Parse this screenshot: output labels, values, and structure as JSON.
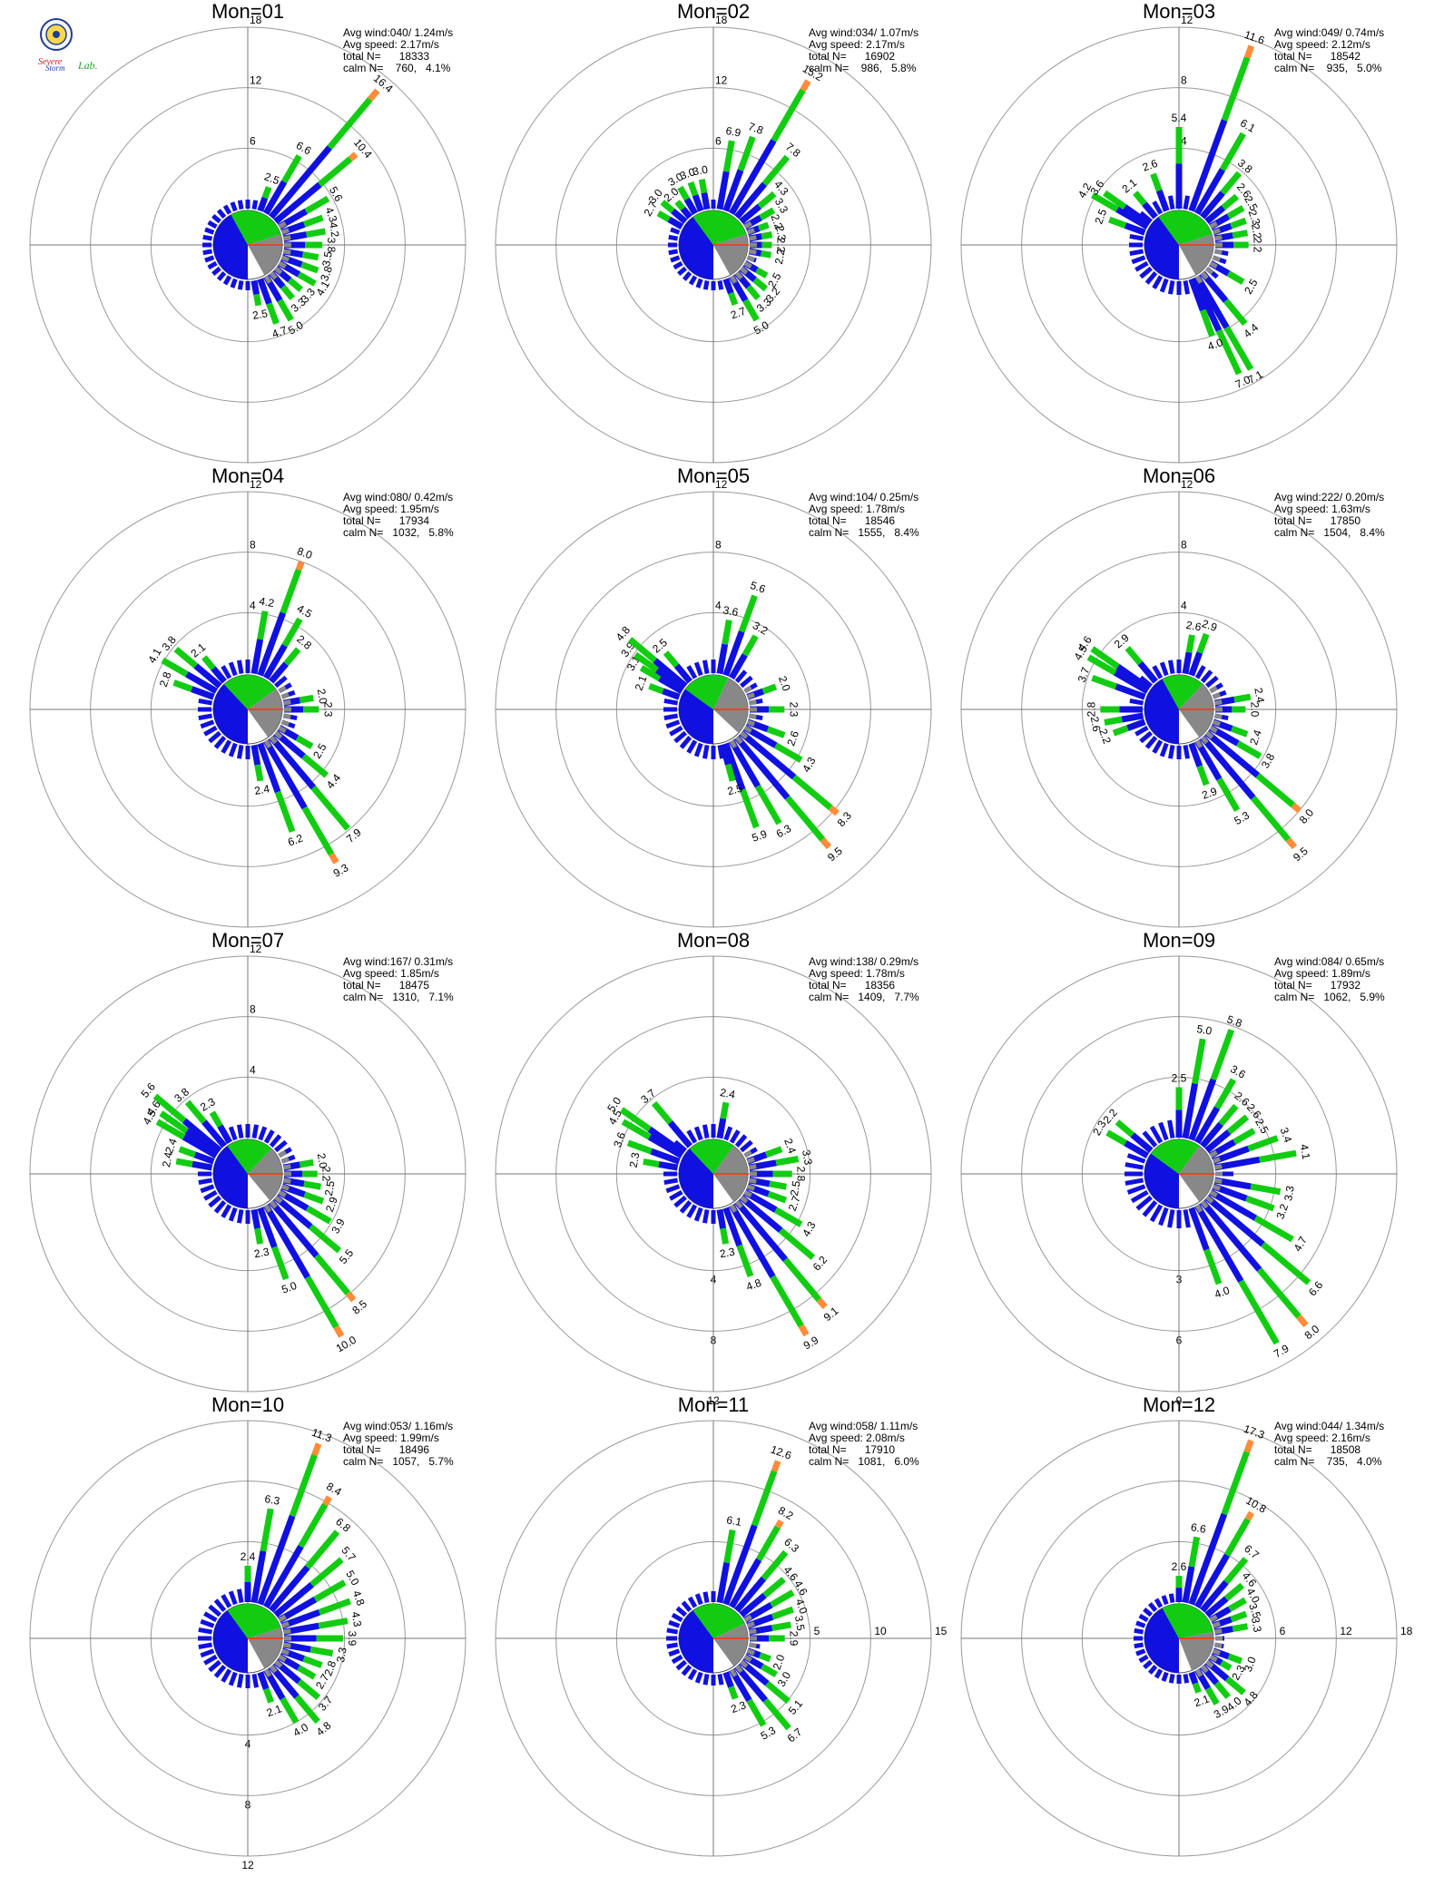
{
  "colors": {
    "blue": "#1010e0",
    "green": "#12cc12",
    "orange": "#ff8c3a",
    "gray": "#888888",
    "ring": "#999999",
    "axis": "#777777",
    "calmWedge": "#ffffff",
    "calmLine": "#ff3300"
  },
  "logo": {
    "text1": "Severe",
    "text2": "Storm",
    "text3": "Lab."
  },
  "charts": [
    {
      "title": "Mon=01",
      "stats": [
        "Avg wind:040/ 1.24m/s",
        "Avg speed: 2.17m/s",
        "total N=      18333",
        "calm N=    760,   4.1%"
      ],
      "rings": [
        6,
        12,
        18
      ],
      "ringLabelDir": 0,
      "dirAvg": 40,
      "pie": {
        "blue": 0.42,
        "green": 0.28,
        "gray": 0.22
      },
      "bars": [
        [
          20,
          2.5
        ],
        [
          30,
          6.6
        ],
        [
          40,
          16.4
        ],
        [
          50,
          10.4
        ],
        [
          60,
          5.6
        ],
        [
          70,
          4.3
        ],
        [
          80,
          4.2
        ],
        [
          90,
          3.8
        ],
        [
          100,
          3.5
        ],
        [
          110,
          3.8
        ],
        [
          120,
          4.1
        ],
        [
          130,
          3.3
        ],
        [
          140,
          3.3
        ],
        [
          150,
          5.0
        ],
        [
          160,
          4.7
        ],
        [
          170,
          2.5
        ]
      ]
    },
    {
      "title": "Mon=02",
      "stats": [
        "Avg wind:034/ 1.07m/s",
        "Avg speed: 2.17m/s",
        "total N=      16902",
        "calm N=    986,   5.8%"
      ],
      "rings": [
        6,
        12,
        18
      ],
      "ringLabelDir": 0,
      "dirAvg": 34,
      "pie": {
        "blue": 0.4,
        "green": 0.3,
        "gray": 0.22
      },
      "bars": [
        [
          300,
          2.7
        ],
        [
          310,
          3.0
        ],
        [
          320,
          2.0
        ],
        [
          330,
          3.0
        ],
        [
          340,
          3.0
        ],
        [
          350,
          3.0
        ],
        [
          10,
          6.9
        ],
        [
          20,
          7.8
        ],
        [
          30,
          15.2
        ],
        [
          40,
          7.8
        ],
        [
          50,
          4.3
        ],
        [
          60,
          3.3
        ],
        [
          70,
          2.2
        ],
        [
          80,
          2.3
        ],
        [
          90,
          2.2
        ],
        [
          100,
          2.2
        ],
        [
          120,
          2.5
        ],
        [
          130,
          3.2
        ],
        [
          140,
          3.3
        ],
        [
          150,
          5.0
        ],
        [
          160,
          2.7
        ]
      ]
    },
    {
      "title": "Mon=03",
      "stats": [
        "Avg wind:049/ 0.74m/s",
        "Avg speed: 2.12m/s",
        "total N=      18542",
        "calm N=    935,   5.0%"
      ],
      "rings": [
        4,
        8,
        12
      ],
      "ringLabelDir": 0,
      "dirAvg": 49,
      "pie": {
        "blue": 0.4,
        "green": 0.3,
        "gray": 0.22
      },
      "bars": [
        [
          290,
          2.5
        ],
        [
          300,
          4.2
        ],
        [
          305,
          3.6
        ],
        [
          320,
          2.1
        ],
        [
          340,
          2.6
        ],
        [
          0,
          5.4
        ],
        [
          20,
          11.6
        ],
        [
          30,
          6.1
        ],
        [
          40,
          3.8
        ],
        [
          50,
          2.6
        ],
        [
          60,
          2.5
        ],
        [
          70,
          2.3
        ],
        [
          80,
          2.2
        ],
        [
          90,
          2.2
        ],
        [
          120,
          2.5
        ],
        [
          140,
          4.4
        ],
        [
          150,
          7.1
        ],
        [
          155,
          7.0
        ],
        [
          160,
          4.0
        ]
      ]
    },
    {
      "title": "Mon=04",
      "stats": [
        "Avg wind:080/ 0.42m/s",
        "Avg speed: 1.95m/s",
        "total N=      17934",
        "calm N=   1032,   5.8%"
      ],
      "rings": [
        4,
        8,
        12
      ],
      "ringLabelDir": 0,
      "dirAvg": 80,
      "pie": {
        "blue": 0.38,
        "green": 0.27,
        "gray": 0.25
      },
      "bars": [
        [
          290,
          2.8
        ],
        [
          300,
          4.1
        ],
        [
          310,
          3.8
        ],
        [
          320,
          2.1
        ],
        [
          10,
          4.2
        ],
        [
          20,
          8.0
        ],
        [
          30,
          4.5
        ],
        [
          40,
          2.8
        ],
        [
          80,
          2.0
        ],
        [
          90,
          2.3
        ],
        [
          120,
          2.5
        ],
        [
          130,
          4.4
        ],
        [
          140,
          7.9
        ],
        [
          150,
          9.3
        ],
        [
          160,
          6.2
        ],
        [
          170,
          2.4
        ]
      ]
    },
    {
      "title": "Mon=05",
      "stats": [
        "Avg wind:104/ 0.25m/s",
        "Avg speed: 1.78m/s",
        "total N=      18546",
        "calm N=   1555,   8.4%"
      ],
      "rings": [
        4,
        8,
        12
      ],
      "ringLabelDir": 0,
      "dirAvg": 104,
      "pie": {
        "blue": 0.35,
        "green": 0.22,
        "gray": 0.3
      },
      "bars": [
        [
          290,
          2.1
        ],
        [
          300,
          3.1
        ],
        [
          305,
          3.9
        ],
        [
          310,
          4.8
        ],
        [
          320,
          2.5
        ],
        [
          10,
          3.6
        ],
        [
          20,
          5.6
        ],
        [
          30,
          3.2
        ],
        [
          70,
          2.0
        ],
        [
          90,
          2.3
        ],
        [
          110,
          2.6
        ],
        [
          120,
          4.3
        ],
        [
          130,
          8.3
        ],
        [
          140,
          9.5
        ],
        [
          150,
          6.3
        ],
        [
          160,
          5.9
        ],
        [
          165,
          2.5
        ]
      ]
    },
    {
      "title": "Mon=06",
      "stats": [
        "Avg wind:222/ 0.20m/s",
        "Avg speed: 1.63m/s",
        "total N=      17850",
        "calm N=   1504,   8.4%"
      ],
      "rings": [
        4,
        8,
        12
      ],
      "ringLabelDir": 0,
      "dirAvg": 222,
      "pie": {
        "blue": 0.42,
        "green": 0.2,
        "gray": 0.28
      },
      "bars": [
        [
          250,
          2.2
        ],
        [
          260,
          2.6
        ],
        [
          270,
          2.8
        ],
        [
          290,
          3.7
        ],
        [
          300,
          4.5
        ],
        [
          305,
          4.6
        ],
        [
          320,
          2.9
        ],
        [
          10,
          2.6
        ],
        [
          20,
          2.9
        ],
        [
          80,
          2.4
        ],
        [
          90,
          2.0
        ],
        [
          110,
          2.4
        ],
        [
          120,
          3.8
        ],
        [
          130,
          8.0
        ],
        [
          140,
          9.5
        ],
        [
          150,
          5.3
        ],
        [
          160,
          2.9
        ]
      ]
    },
    {
      "title": "Mon=07",
      "stats": [
        "Avg wind:167/ 0.31m/s",
        "Avg speed: 1.85m/s",
        "total N=      18475",
        "calm N=   1310,   7.1%"
      ],
      "rings": [
        4,
        8,
        12
      ],
      "ringLabelDir": 0,
      "dirAvg": 167,
      "pie": {
        "blue": 0.4,
        "green": 0.22,
        "gray": 0.27
      },
      "bars": [
        [
          280,
          2.4
        ],
        [
          290,
          2.4
        ],
        [
          300,
          4.5
        ],
        [
          305,
          4.6
        ],
        [
          310,
          5.6
        ],
        [
          320,
          3.8
        ],
        [
          330,
          2.3
        ],
        [
          80,
          2.0
        ],
        [
          90,
          2.2
        ],
        [
          100,
          2.5
        ],
        [
          110,
          2.9
        ],
        [
          120,
          3.9
        ],
        [
          130,
          5.5
        ],
        [
          140,
          8.5
        ],
        [
          150,
          10.0
        ],
        [
          160,
          5.0
        ],
        [
          170,
          2.3
        ]
      ]
    },
    {
      "title": "Mon=08",
      "stats": [
        "Avg wind:138/ 0.29m/s",
        "Avg speed: 1.78m/s",
        "total N=      18356",
        "calm N=   1409,   7.7%"
      ],
      "rings": [
        4,
        8,
        12
      ],
      "ringLabelDir": 180,
      "dirAvg": 138,
      "pie": {
        "blue": 0.38,
        "green": 0.22,
        "gray": 0.3
      },
      "bars": [
        [
          280,
          2.3
        ],
        [
          290,
          3.6
        ],
        [
          300,
          4.5
        ],
        [
          305,
          5.0
        ],
        [
          320,
          3.7
        ],
        [
          10,
          2.4
        ],
        [
          70,
          2.4
        ],
        [
          80,
          3.3
        ],
        [
          90,
          2.8
        ],
        [
          100,
          2.5
        ],
        [
          110,
          2.7
        ],
        [
          120,
          4.3
        ],
        [
          130,
          6.2
        ],
        [
          140,
          9.1
        ],
        [
          150,
          9.9
        ],
        [
          160,
          4.8
        ],
        [
          170,
          2.3
        ]
      ]
    },
    {
      "title": "Mon=09",
      "stats": [
        "Avg wind:084/ 0.65m/s",
        "Avg speed: 1.89m/s",
        "total N=      17932",
        "calm N=   1062,   5.9%"
      ],
      "rings": [
        3,
        6,
        9
      ],
      "ringLabelDir": 180,
      "dirAvg": 84,
      "pie": {
        "blue": 0.35,
        "green": 0.25,
        "gray": 0.3
      },
      "bars": [
        [
          300,
          2.3
        ],
        [
          310,
          2.2
        ],
        [
          0,
          2.5
        ],
        [
          10,
          5.0
        ],
        [
          20,
          5.8
        ],
        [
          30,
          3.6
        ],
        [
          40,
          2.6
        ],
        [
          50,
          2.6
        ],
        [
          60,
          2.5
        ],
        [
          70,
          3.4
        ],
        [
          80,
          4.1
        ],
        [
          100,
          3.3
        ],
        [
          110,
          3.2
        ],
        [
          120,
          4.7
        ],
        [
          130,
          6.6
        ],
        [
          140,
          8.0
        ],
        [
          150,
          7.9
        ],
        [
          160,
          4.0
        ]
      ]
    },
    {
      "title": "Mon=10",
      "stats": [
        "Avg wind:053/ 1.16m/s",
        "Avg speed: 1.99m/s",
        "total N=      18496",
        "calm N=   1057,   5.7%"
      ],
      "rings": [
        4,
        8,
        12
      ],
      "ringLabelDir": 180,
      "dirAvg": 53,
      "pie": {
        "blue": 0.4,
        "green": 0.3,
        "gray": 0.22
      },
      "bars": [
        [
          0,
          2.4
        ],
        [
          10,
          6.3
        ],
        [
          20,
          11.3
        ],
        [
          30,
          8.4
        ],
        [
          40,
          6.8
        ],
        [
          50,
          5.7
        ],
        [
          60,
          5.0
        ],
        [
          70,
          4.8
        ],
        [
          80,
          4.3
        ],
        [
          90,
          3.9
        ],
        [
          100,
          3.3
        ],
        [
          110,
          2.8
        ],
        [
          120,
          2.7
        ],
        [
          130,
          3.7
        ],
        [
          140,
          4.8
        ],
        [
          150,
          4.0
        ],
        [
          160,
          2.1
        ]
      ]
    },
    {
      "title": "Mon=11",
      "stats": [
        "Avg wind:058/ 1.11m/s",
        "Avg speed: 2.08m/s",
        "total N=      17910",
        "calm N=   1081,   6.0%"
      ],
      "rings": [
        5,
        10,
        15
      ],
      "ringLabelDir": 90,
      "dirAvg": 58,
      "pie": {
        "blue": 0.4,
        "green": 0.28,
        "gray": 0.22
      },
      "bars": [
        [
          10,
          6.1
        ],
        [
          20,
          12.6
        ],
        [
          30,
          8.2
        ],
        [
          40,
          6.3
        ],
        [
          50,
          4.6
        ],
        [
          60,
          4.6
        ],
        [
          70,
          4.0
        ],
        [
          80,
          3.5
        ],
        [
          90,
          2.9
        ],
        [
          110,
          2.0
        ],
        [
          120,
          3.0
        ],
        [
          130,
          5.1
        ],
        [
          140,
          6.7
        ],
        [
          150,
          5.3
        ],
        [
          160,
          2.3
        ]
      ]
    },
    {
      "title": "Mon=12",
      "stats": [
        "Avg wind:044/ 1.34m/s",
        "Avg speed: 2.16m/s",
        "total N=      18508",
        "calm N=    735,   4.0%"
      ],
      "rings": [
        6,
        12,
        18
      ],
      "ringLabelDir": 90,
      "dirAvg": 44,
      "pie": {
        "blue": 0.42,
        "green": 0.3,
        "gray": 0.22
      },
      "bars": [
        [
          0,
          2.6
        ],
        [
          10,
          6.6
        ],
        [
          20,
          17.3
        ],
        [
          30,
          10.8
        ],
        [
          40,
          6.7
        ],
        [
          50,
          4.6
        ],
        [
          60,
          4.0
        ],
        [
          70,
          3.5
        ],
        [
          80,
          3.3
        ],
        [
          110,
          3.0
        ],
        [
          120,
          2.3
        ],
        [
          130,
          4.8
        ],
        [
          140,
          4.0
        ],
        [
          150,
          3.9
        ],
        [
          160,
          2.1
        ]
      ]
    }
  ]
}
